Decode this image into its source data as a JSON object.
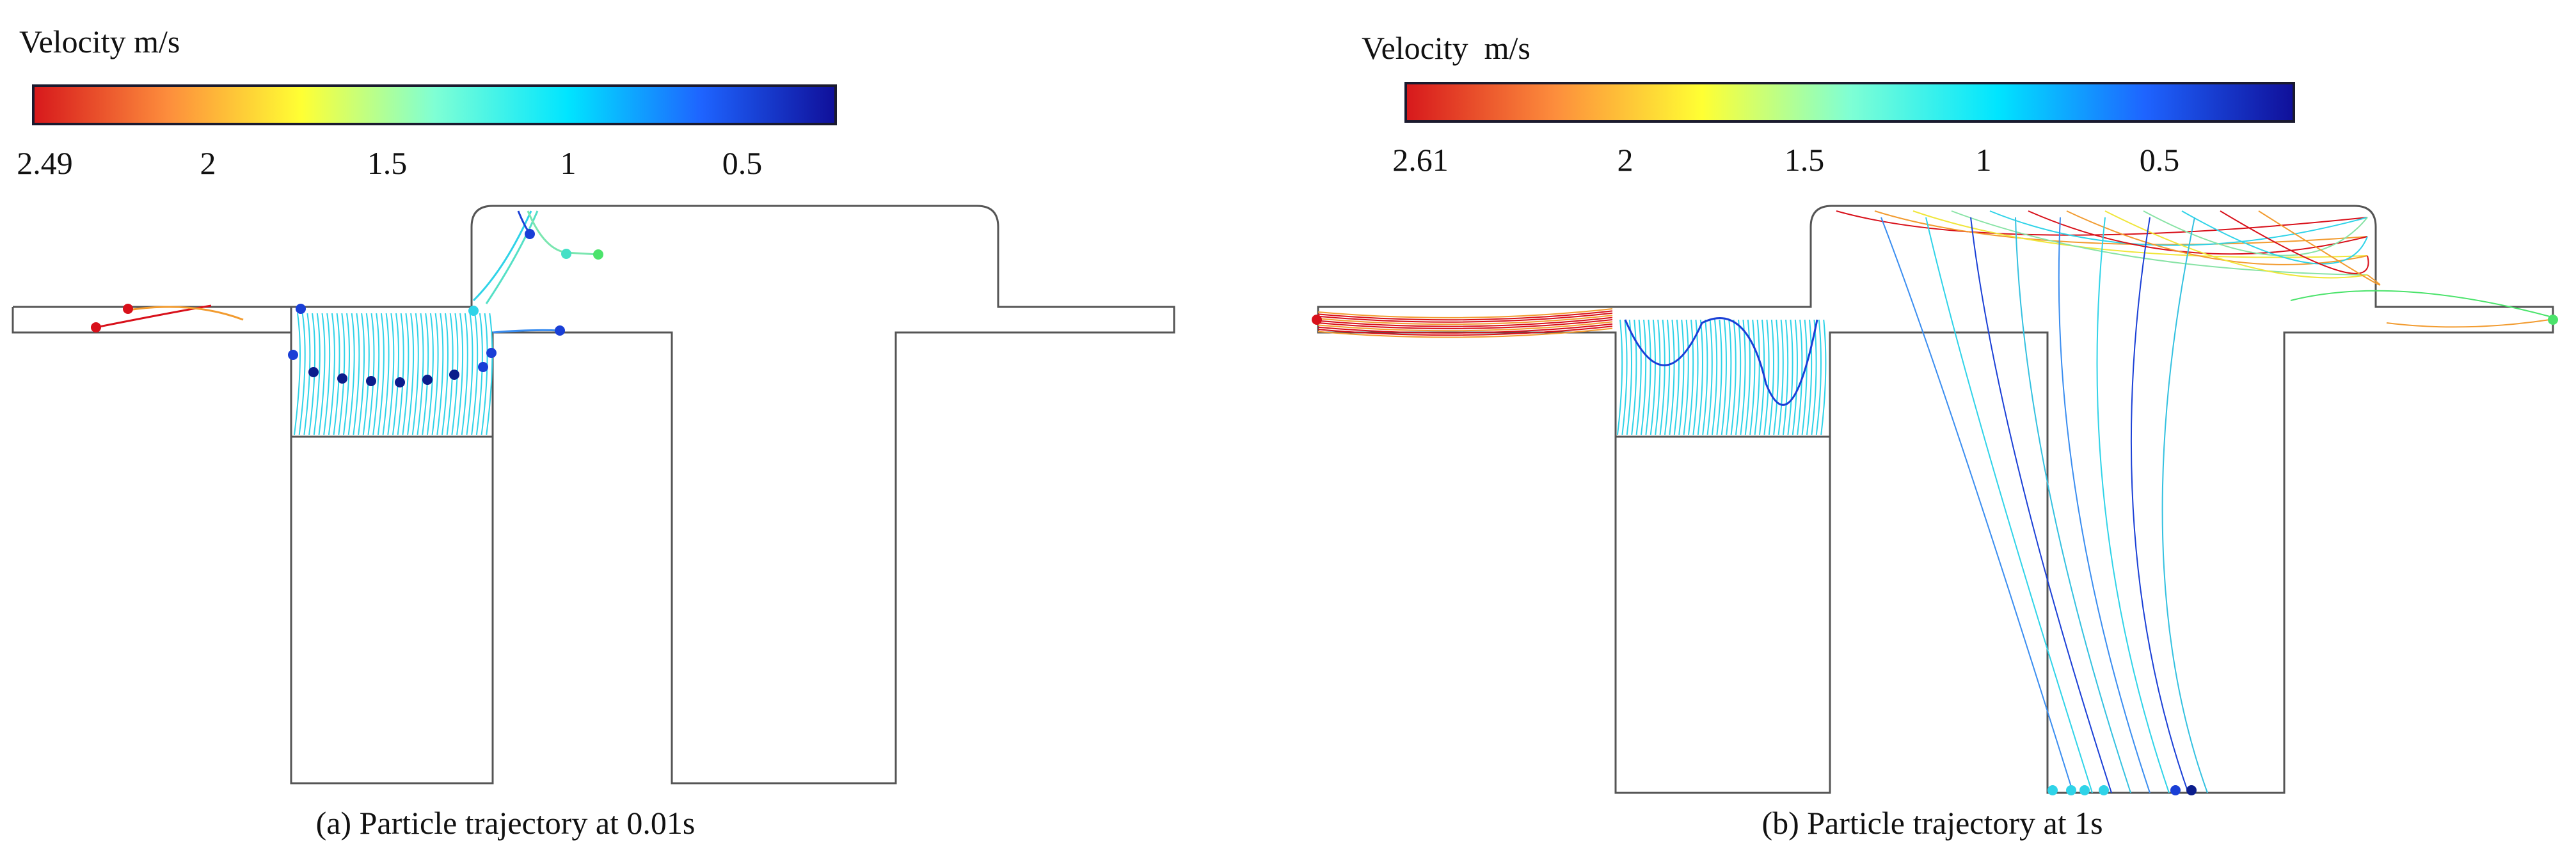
{
  "panels": [
    {
      "colorbar": {
        "title": "Velocity m/s",
        "ticks": [
          "2.49",
          "2",
          "1.5",
          "1",
          "0.5"
        ]
      },
      "caption": "(a) Particle trajectory at 0.01s"
    },
    {
      "colorbar": {
        "title": "Velocity  m/s",
        "ticks": [
          "2.61",
          "2",
          "1.5",
          "1",
          "0.5"
        ]
      },
      "caption": "(b) Particle trajectory at 1s"
    }
  ],
  "colormap": [
    "#d7191c",
    "#fd8d3c",
    "#ffff33",
    "#7fffd4",
    "#00e5ff",
    "#1e64ff",
    "#10109a"
  ]
}
